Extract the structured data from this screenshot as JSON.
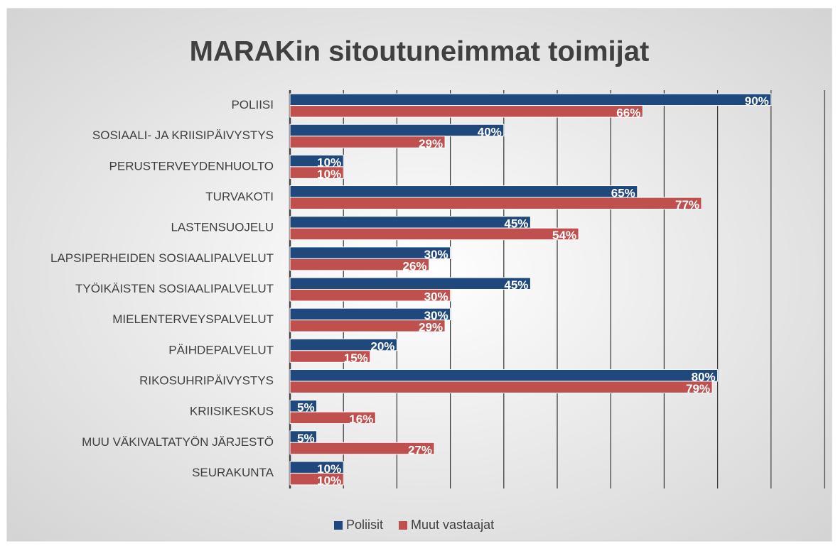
{
  "chart_data": {
    "type": "hbar",
    "title": "MARAKin sitoutuneimmat toimijat",
    "categories": [
      "POLIISI",
      "SOSIAALI- JA KRIISIPÄIVYSTYS",
      "PERUSTERVEYDENHUOLTO",
      "TURVAKOTI",
      "LASTENSUOJELU",
      "LAPSIPERHEIDEN SOSIAALIPALVELUT",
      "TYÖIKÄISTEN SOSIAALIPALVELUT",
      "MIELENTERVEYSPALVELUT",
      "PÄIHDEPALVELUT",
      "RIKOSUHRIPÄIVYSTYS",
      "KRIISIKESKUS",
      "MUU VÄKIVALTATYÖN JÄRJESTÖ",
      "SEURAKUNTA"
    ],
    "series": [
      {
        "name": "Poliisit",
        "color": "#1f497d",
        "values": [
          90,
          40,
          10,
          65,
          45,
          30,
          45,
          30,
          20,
          80,
          5,
          5,
          10
        ],
        "value_labels": [
          "90%",
          "40%",
          "10%",
          "65%",
          "45%",
          "30%",
          "45%",
          "30%",
          "20%",
          "80%",
          "5%",
          "5%",
          "10%"
        ]
      },
      {
        "name": "Muut vastaajat",
        "color": "#c0504d",
        "values": [
          66,
          29,
          10,
          77,
          54,
          26,
          30,
          29,
          15,
          79,
          16,
          27,
          10
        ],
        "value_labels": [
          "66%",
          "29%",
          "10%",
          "77%",
          "54%",
          "26%",
          "30%",
          "29%",
          "15%",
          "79%",
          "16%",
          "27%",
          "10%"
        ]
      }
    ],
    "xlim": [
      0,
      100
    ],
    "xticks": [
      0,
      10,
      20,
      30,
      40,
      50,
      60,
      70,
      80,
      90,
      100
    ],
    "grid": true,
    "legend": "bottom"
  }
}
